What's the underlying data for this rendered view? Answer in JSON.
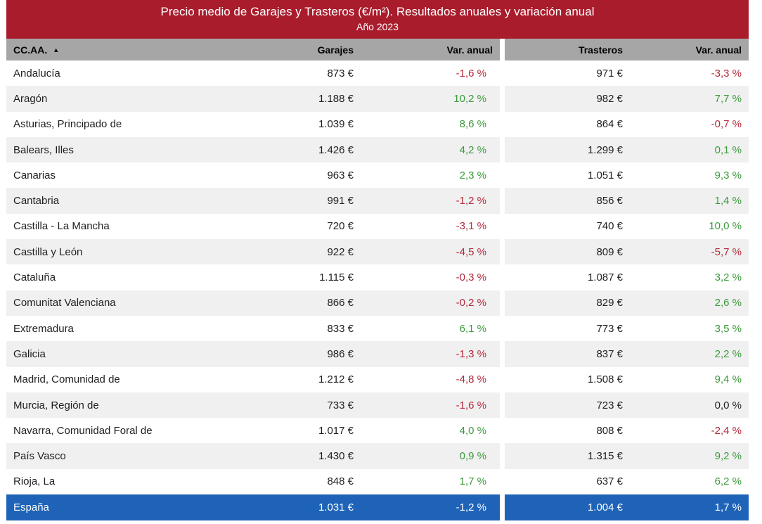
{
  "title": "Precio medio de Garajes y Trasteros (€/m²). Resultados anuales y variación anual",
  "subtitle": "Año 2023",
  "colors": {
    "header_bg": "#a91c2c",
    "col_header_bg": "#a6a6a6",
    "total_bg": "#1e63b8",
    "positive": "#3c9a3c",
    "negative": "#b5283a"
  },
  "columns": {
    "region": "CC.AA.",
    "garajes": "Garajes",
    "var1": "Var. anual",
    "trasteros": "Trasteros",
    "var2": "Var. anual"
  },
  "sort_icon": "sort-ascending-icon",
  "rows": [
    {
      "region": "Andalucía",
      "garajes": "873 €",
      "var1": "-1,6 %",
      "trasteros": "971 €",
      "var2": "-3,3 %"
    },
    {
      "region": "Aragón",
      "garajes": "1.188 €",
      "var1": "10,2 %",
      "trasteros": "982 €",
      "var2": "7,7 %"
    },
    {
      "region": "Asturias, Principado de",
      "garajes": "1.039 €",
      "var1": "8,6 %",
      "trasteros": "864 €",
      "var2": "-0,7 %"
    },
    {
      "region": "Balears, Illes",
      "garajes": "1.426 €",
      "var1": "4,2 %",
      "trasteros": "1.299 €",
      "var2": "0,1 %"
    },
    {
      "region": "Canarias",
      "garajes": "963 €",
      "var1": "2,3 %",
      "trasteros": "1.051 €",
      "var2": "9,3 %"
    },
    {
      "region": "Cantabria",
      "garajes": "991 €",
      "var1": "-1,2 %",
      "trasteros": "856 €",
      "var2": "1,4 %"
    },
    {
      "region": "Castilla - La Mancha",
      "garajes": "720 €",
      "var1": "-3,1 %",
      "trasteros": "740 €",
      "var2": "10,0 %"
    },
    {
      "region": "Castilla y León",
      "garajes": "922 €",
      "var1": "-4,5 %",
      "trasteros": "809 €",
      "var2": "-5,7 %"
    },
    {
      "region": "Cataluña",
      "garajes": "1.115 €",
      "var1": "-0,3 %",
      "trasteros": "1.087 €",
      "var2": "3,2 %"
    },
    {
      "region": "Comunitat Valenciana",
      "garajes": "866 €",
      "var1": "-0,2 %",
      "trasteros": "829 €",
      "var2": "2,6 %"
    },
    {
      "region": "Extremadura",
      "garajes": "833 €",
      "var1": "6,1 %",
      "trasteros": "773 €",
      "var2": "3,5 %"
    },
    {
      "region": "Galicia",
      "garajes": "986 €",
      "var1": "-1,3 %",
      "trasteros": "837 €",
      "var2": "2,2 %"
    },
    {
      "region": "Madrid, Comunidad de",
      "garajes": "1.212 €",
      "var1": "-4,8 %",
      "trasteros": "1.508 €",
      "var2": "9,4 %"
    },
    {
      "region": "Murcia, Región de",
      "garajes": "733 €",
      "var1": "-1,6 %",
      "trasteros": "723 €",
      "var2": "0,0 %"
    },
    {
      "region": "Navarra, Comunidad Foral de",
      "garajes": "1.017 €",
      "var1": "4,0 %",
      "trasteros": "808 €",
      "var2": "-2,4 %"
    },
    {
      "region": "País Vasco",
      "garajes": "1.430 €",
      "var1": "0,9 %",
      "trasteros": "1.315 €",
      "var2": "9,2 %"
    },
    {
      "region": "Rioja, La",
      "garajes": "848 €",
      "var1": "1,7 %",
      "trasteros": "637 €",
      "var2": "6,2 %"
    }
  ],
  "total": {
    "region": "España",
    "garajes": "1.031 €",
    "var1": "-1,2 %",
    "trasteros": "1.004 €",
    "var2": "1,7 %"
  }
}
